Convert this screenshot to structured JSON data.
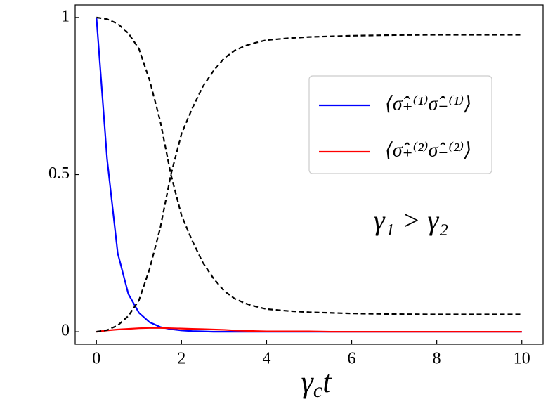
{
  "chart_data": {
    "type": "line",
    "xlabel": {
      "symbol": "γ",
      "subscript": "c",
      "suffix": "t"
    },
    "annotation": "γ₁ > γ₂",
    "x": [
      0,
      0.25,
      0.5,
      0.75,
      1,
      1.25,
      1.5,
      1.75,
      2,
      2.25,
      2.5,
      2.75,
      3,
      3.25,
      3.5,
      3.75,
      4,
      4.5,
      5,
      5.5,
      6,
      7,
      8,
      9,
      10
    ],
    "series": [
      {
        "name": "⟨σ̂₊⁽¹⁾σ̂₋⁽¹⁾⟩",
        "color": "#0000ff",
        "style": "solid",
        "values": [
          1,
          0.55,
          0.25,
          0.12,
          0.06,
          0.03,
          0.015,
          0.008,
          0.004,
          0.002,
          0.001,
          0,
          0,
          0,
          0,
          0,
          0,
          0,
          0,
          0,
          0,
          0,
          0,
          0,
          0
        ]
      },
      {
        "name": "⟨σ̂₊⁽²⁾σ̂₋⁽²⁾⟩",
        "color": "#ff0000",
        "style": "solid",
        "values": [
          0,
          0.004,
          0.007,
          0.009,
          0.011,
          0.012,
          0.012,
          0.011,
          0.01,
          0.009,
          0.008,
          0.007,
          0.006,
          0.004,
          0.003,
          0.002,
          0.001,
          0.001,
          0.001,
          0,
          0,
          0,
          0,
          0,
          0
        ]
      },
      {
        "color": "#000000",
        "style": "dashed",
        "values": [
          0,
          0.005,
          0.02,
          0.05,
          0.1,
          0.2,
          0.33,
          0.5,
          0.63,
          0.71,
          0.78,
          0.83,
          0.87,
          0.895,
          0.91,
          0.92,
          0.928,
          0.934,
          0.938,
          0.94,
          0.942,
          0.944,
          0.945,
          0.945,
          0.945
        ]
      },
      {
        "color": "#000000",
        "style": "dashed",
        "values": [
          1,
          0.995,
          0.98,
          0.95,
          0.9,
          0.8,
          0.67,
          0.5,
          0.37,
          0.29,
          0.22,
          0.17,
          0.13,
          0.105,
          0.09,
          0.08,
          0.072,
          0.066,
          0.062,
          0.06,
          0.058,
          0.056,
          0.055,
          0.055,
          0.055
        ]
      }
    ],
    "xlim": [
      -0.5,
      10.5
    ],
    "ylim": [
      -0.04,
      1.04
    ],
    "xticks": [
      0,
      2,
      4,
      6,
      8,
      10
    ],
    "yticks": [
      0,
      0.5,
      1
    ],
    "grid": false,
    "legend": "upper right"
  }
}
